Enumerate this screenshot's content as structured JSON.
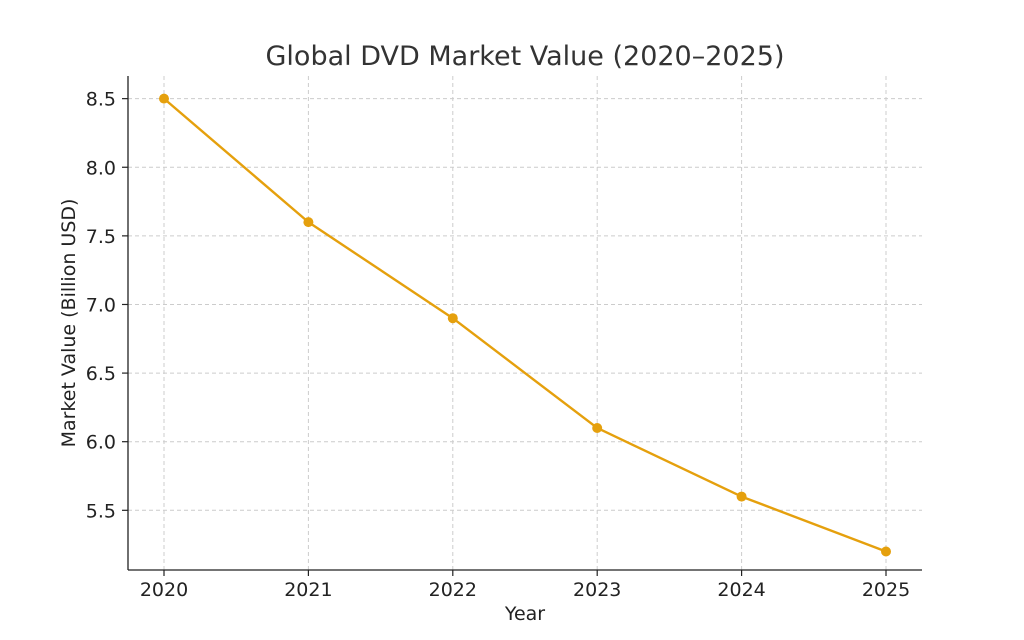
{
  "chart_data": {
    "type": "line",
    "title": "Global DVD Market Value (2020–2025)",
    "xlabel": "Year",
    "ylabel": "Market Value (Billion USD)",
    "x": [
      "2020",
      "2021",
      "2022",
      "2023",
      "2024",
      "2025"
    ],
    "yticks": [
      "5.5",
      "6.0",
      "6.5",
      "7.0",
      "7.5",
      "8.0",
      "8.5"
    ],
    "ylim": [
      5.065,
      8.665
    ],
    "grid": true,
    "series": [
      {
        "values": [
          8.5,
          7.6,
          6.9,
          6.1,
          5.6,
          5.2
        ],
        "color": "#E5A00D",
        "marker": "circle"
      }
    ]
  }
}
